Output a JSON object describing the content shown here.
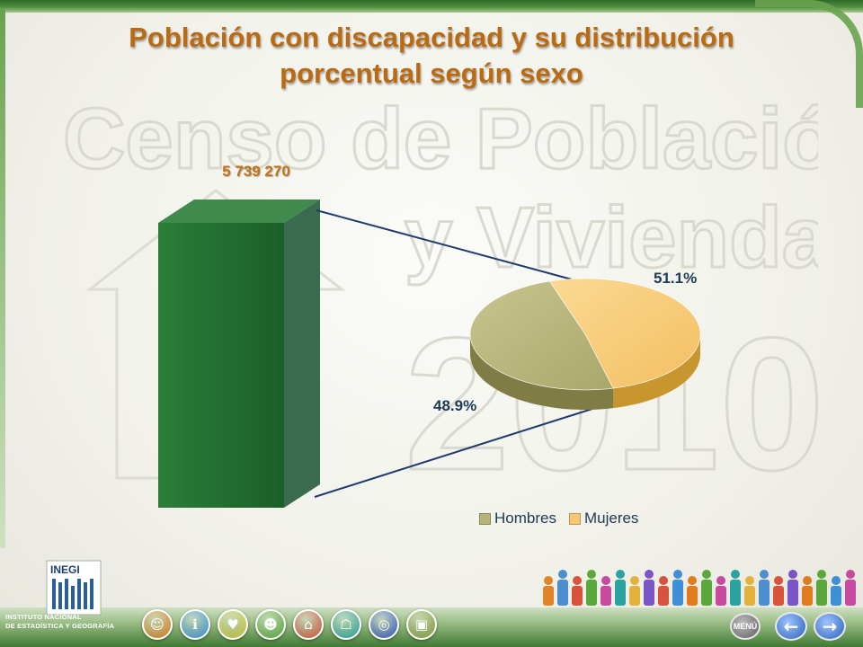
{
  "slide": {
    "title_line1": "Población con discapacidad y su distribución",
    "title_line2": "porcentual según sexo",
    "watermark_line1": "Censo de Población",
    "watermark_line2": "y Vivienda",
    "watermark_year": "2010"
  },
  "chart_data": {
    "type": "bar-of-pie",
    "title": "Población con discapacidad y su distribución porcentual según sexo",
    "bar": {
      "value": 5739270,
      "label": "5 739 270",
      "color": "#1e6b2e"
    },
    "pie": {
      "slices": [
        {
          "name": "Hombres",
          "value": 48.9,
          "label": "48.9%",
          "color": "#b6b47a"
        },
        {
          "name": "Mujeres",
          "value": 51.1,
          "label": "51.1%",
          "color": "#f6c873"
        }
      ]
    },
    "legend": {
      "placement": "bottom-right",
      "items": [
        "Hombres",
        "Mujeres"
      ]
    }
  },
  "footer": {
    "logo_name": "INEGI",
    "logo_line1": "INSTITUTO NACIONAL",
    "logo_line2": "DE ESTADÍSTICA Y GEOGRAFÍA",
    "nav_icons": [
      {
        "name": "population-icon",
        "color": "#e07b1f"
      },
      {
        "name": "info-icon",
        "color": "#3f8fd6"
      },
      {
        "name": "family-icon",
        "color": "#c9c43c"
      },
      {
        "name": "people-icon",
        "color": "#5aa83b"
      },
      {
        "name": "home-icon",
        "color": "#d9533c"
      },
      {
        "name": "house-icon",
        "color": "#2aa3a0"
      },
      {
        "name": "globe-icon",
        "color": "#3a55c8"
      },
      {
        "name": "map-icon",
        "color": "#8a9a3a"
      }
    ],
    "menu_label": "MENÚ",
    "prev_icon": "arrow-left-icon",
    "next_icon": "arrow-right-icon"
  },
  "colors": {
    "title": "#b96a12",
    "bar_green": "#1e6b2e",
    "connector": "#1f3a6b",
    "label_text": "#1f3a55"
  }
}
